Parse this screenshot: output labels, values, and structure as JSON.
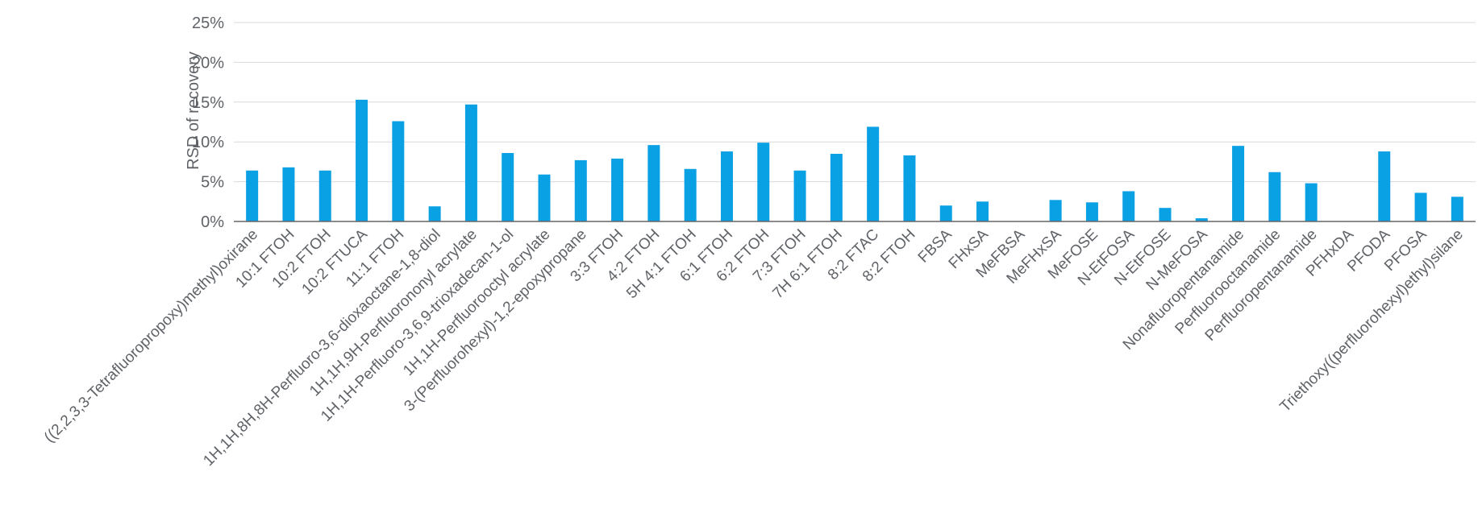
{
  "chart_data": {
    "type": "bar",
    "title": "",
    "xlabel": "",
    "ylabel": "RSD of recovery",
    "ylim": [
      0,
      25
    ],
    "yticks": [
      0,
      5,
      10,
      15,
      20,
      25
    ],
    "ytick_labels": [
      "0%",
      "5%",
      "10%",
      "15%",
      "20%",
      "25%"
    ],
    "grid": true,
    "legend": "none",
    "bar_color": "#0aa0e4",
    "categories": [
      "((2,2,3,3-Tetrafluoropropoxy)methyl)oxirane",
      "10:1 FTOH",
      "10:2 FTOH",
      "10:2 FTUCA",
      "11:1 FTOH",
      "1H,1H,8H,8H-Perfluoro-3,6-dioxaoctane-1,8-diol",
      "1H,1H,9H-Perfluorononyl acrylate",
      "1H,1H-Perfluoro-3,6,9-trioxadecan-1-ol",
      "1H,1H-Perfluorooctyl acrylate",
      "3-(Perfluorohexyl)-1,2-epoxypropane",
      "3:3 FTOH",
      "4:2 FTOH",
      "5H 4:1 FTOH",
      "6:1 FTOH",
      "6:2 FTOH",
      "7:3 FTOH",
      "7H 6:1 FTOH",
      "8:2 FTAC",
      "8:2 FTOH",
      "FBSA",
      "FHxSA",
      "MeFBSA",
      "MeFHxSA",
      "MeFOSE",
      "N-EtFOSA",
      "N-EtFOSE",
      "N-MeFOSA",
      "Nonafluoropentanamide",
      "Perfluorooctanamide",
      "Perfluoropentanamide",
      "PFHxDA",
      "PFODA",
      "PFOSA",
      "Triethoxy((perfluorohexyl)ethyl)silane"
    ],
    "values": [
      6.4,
      6.8,
      6.4,
      15.3,
      12.6,
      1.9,
      14.7,
      8.6,
      5.9,
      7.7,
      7.9,
      9.6,
      6.6,
      8.8,
      9.9,
      6.4,
      8.5,
      11.9,
      8.3,
      2.0,
      2.5,
      0.0,
      2.7,
      2.4,
      3.8,
      1.7,
      0.4,
      9.5,
      6.2,
      4.8,
      0.0,
      8.8,
      3.6,
      3.1
    ]
  }
}
